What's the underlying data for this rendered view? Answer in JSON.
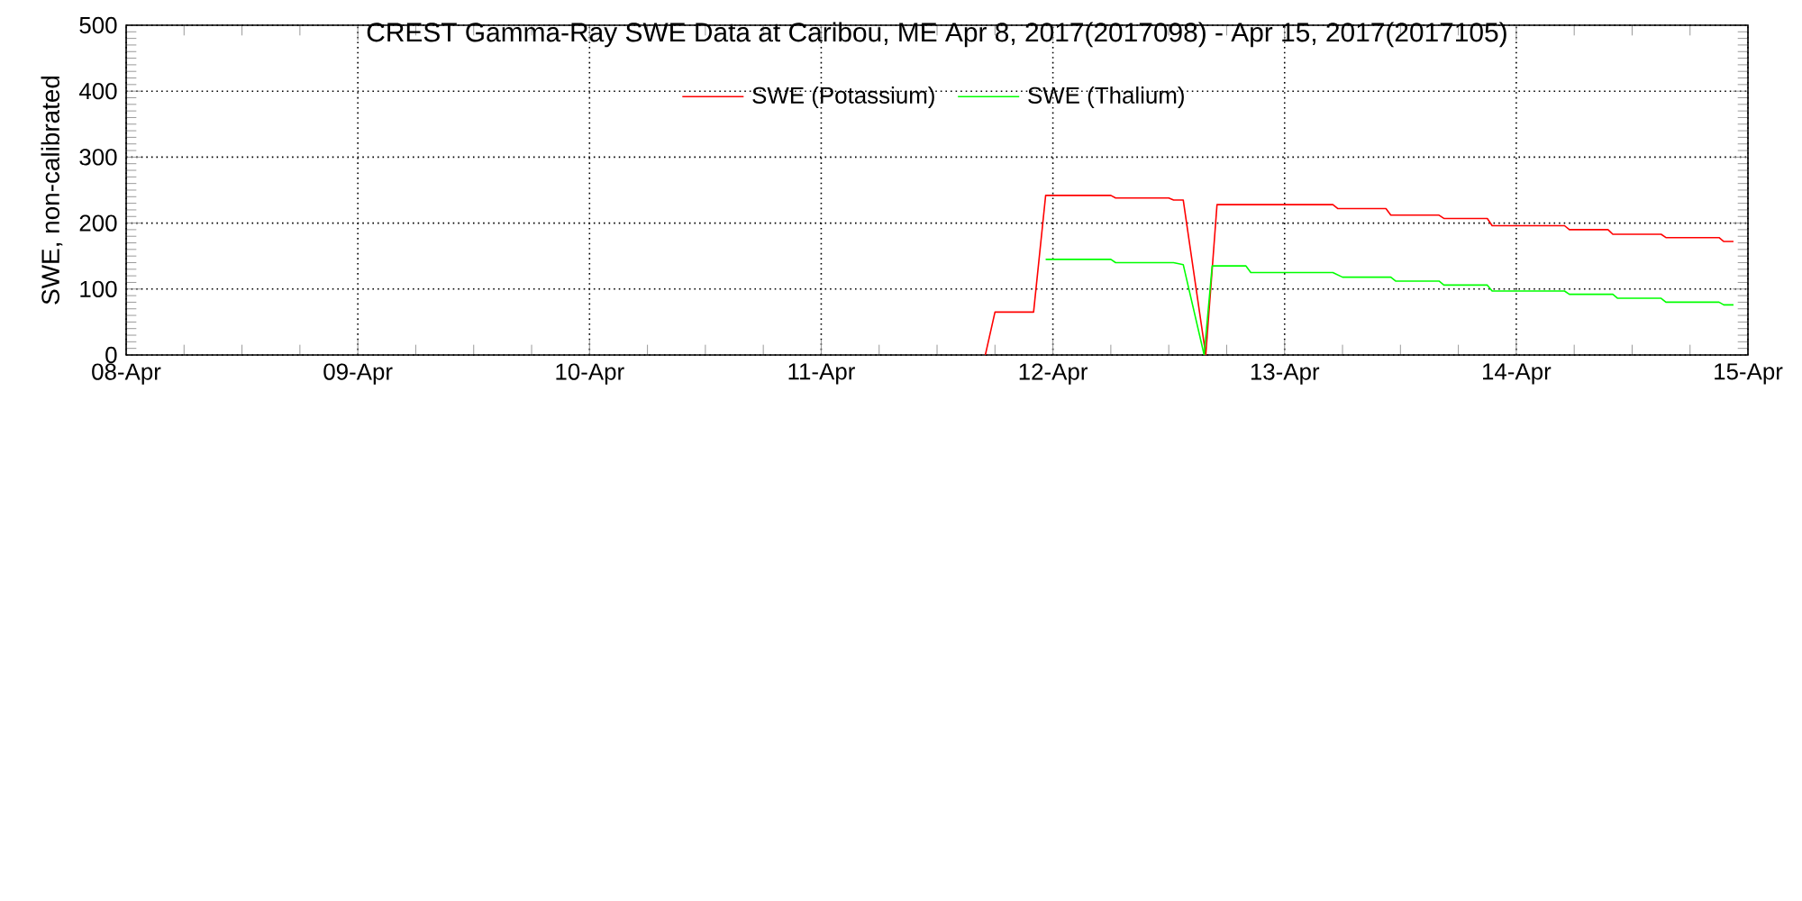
{
  "chart_data": {
    "type": "line",
    "title": "CREST Gamma-Ray SWE Data at Caribou, ME   Apr  8, 2017(2017098) - Apr 15, 2017(2017105)",
    "ylabel": "SWE, non-calibrated",
    "xlim": [
      "2017-04-08",
      "2017-04-15"
    ],
    "xticks": [
      {
        "value": "2017-04-08",
        "label": "08-Apr"
      },
      {
        "value": "2017-04-09",
        "label": "09-Apr"
      },
      {
        "value": "2017-04-10",
        "label": "10-Apr"
      },
      {
        "value": "2017-04-11",
        "label": "11-Apr"
      },
      {
        "value": "2017-04-12",
        "label": "12-Apr"
      },
      {
        "value": "2017-04-13",
        "label": "13-Apr"
      },
      {
        "value": "2017-04-14",
        "label": "14-Apr"
      },
      {
        "value": "2017-04-15",
        "label": "15-Apr"
      }
    ],
    "ylim": [
      0,
      500
    ],
    "yticks": [
      0,
      100,
      200,
      300,
      400,
      500
    ],
    "grid": true,
    "legend": "top",
    "line_style": "solid",
    "series": [
      {
        "name": "SWE (Potassium)",
        "color": "#ff0000",
        "x": [
          "2017-04-11T17:00",
          "2017-04-11T18:00",
          "2017-04-11T22:00",
          "2017-04-11T23:15",
          "2017-04-12T06:00",
          "2017-04-12T06:30",
          "2017-04-12T12:00",
          "2017-04-12T12:30",
          "2017-04-12T13:30",
          "2017-04-12T15:50",
          "2017-04-12T17:00",
          "2017-04-13T05:00",
          "2017-04-13T05:30",
          "2017-04-13T10:30",
          "2017-04-13T11:00",
          "2017-04-13T16:00",
          "2017-04-13T16:30",
          "2017-04-13T21:00",
          "2017-04-13T21:30",
          "2017-04-14T05:00",
          "2017-04-14T05:30",
          "2017-04-14T09:30",
          "2017-04-14T10:00",
          "2017-04-14T15:00",
          "2017-04-14T15:30",
          "2017-04-14T21:00",
          "2017-04-14T21:30",
          "2017-04-14T22:30"
        ],
        "values": [
          0,
          65,
          65,
          242,
          242,
          238,
          238,
          235,
          235,
          0,
          228,
          228,
          222,
          222,
          212,
          212,
          207,
          207,
          196,
          196,
          190,
          190,
          183,
          183,
          178,
          178,
          172,
          172
        ]
      },
      {
        "name": "SWE (Thalium)",
        "color": "#00ff00",
        "x": [
          "2017-04-11T23:15",
          "2017-04-12T06:00",
          "2017-04-12T06:30",
          "2017-04-12T12:30",
          "2017-04-12T13:30",
          "2017-04-12T15:40",
          "2017-04-12T16:30",
          "2017-04-12T20:00",
          "2017-04-12T20:30",
          "2017-04-13T05:00",
          "2017-04-13T06:00",
          "2017-04-13T11:00",
          "2017-04-13T11:30",
          "2017-04-13T16:00",
          "2017-04-13T16:30",
          "2017-04-13T21:00",
          "2017-04-13T21:30",
          "2017-04-14T05:00",
          "2017-04-14T05:30",
          "2017-04-14T10:00",
          "2017-04-14T10:30",
          "2017-04-14T15:00",
          "2017-04-14T15:30",
          "2017-04-14T21:00",
          "2017-04-14T21:30",
          "2017-04-14T22:30"
        ],
        "values": [
          145,
          145,
          140,
          140,
          137,
          0,
          135,
          135,
          125,
          125,
          118,
          118,
          112,
          112,
          106,
          106,
          97,
          97,
          92,
          92,
          86,
          86,
          80,
          80,
          76,
          76
        ]
      }
    ]
  }
}
